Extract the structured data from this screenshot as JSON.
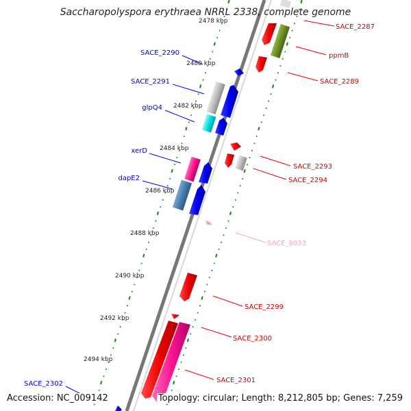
{
  "title": "Saccharopolyspora erythraea NRRL 2338, complete genome",
  "accession": "Accession: NC_009142",
  "topology": "Topology: circular; Length: 8,212,805 bp; Genes: 7,259",
  "ticks": [
    "2478 kbp",
    "2480 kbp",
    "2482 kbp",
    "2484 kbp",
    "2486 kbp",
    "2488 kbp",
    "2490 kbp",
    "2492 kbp",
    "2494 kbp"
  ],
  "left_labels": [
    "SACE_2290",
    "SACE_2291",
    "glpQ4",
    "xerD",
    "dapE2",
    "SACE_2302"
  ],
  "right_labels": [
    "SACE_2287",
    "ppmB",
    "SACE_2289",
    "SACE_2293",
    "SACE_2294",
    "SACE_8033",
    "SACE_2299",
    "SACE_2300",
    "SACE_2301"
  ],
  "colors": {
    "backbone": "#777777",
    "tick": "#2a8a2a",
    "plus_gene": "#0000ee",
    "minus_gene": "#ee0000",
    "gray_gene": "#b8b8b8",
    "cyan_gene": "#00e0e0",
    "pink_gene": "#ff1493",
    "steel_gene": "#4a7fb0",
    "olive_gene": "#6b8e23",
    "light_pink_label": "#ff9ccf",
    "left_label_color": "#0000cc",
    "right_label_color": "#cc0000"
  }
}
